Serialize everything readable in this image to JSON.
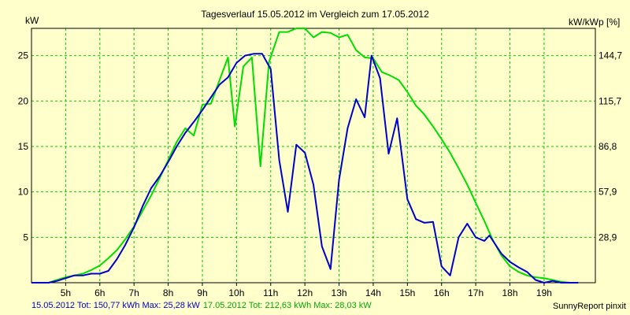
{
  "chart_data": {
    "type": "line",
    "title": "Tagesverlauf 15.05.2012 im Vergleich zum 17.05.2012",
    "ylabel_left": "kW",
    "ylabel_right": "kW/kWp [%]",
    "xlim": [
      4.0,
      20.5
    ],
    "ylim": [
      0,
      28
    ],
    "x_ticks": [
      5,
      6,
      7,
      8,
      9,
      10,
      11,
      12,
      13,
      14,
      15,
      16,
      17,
      18,
      19
    ],
    "x_tick_labels": [
      "5h",
      "6h",
      "7h",
      "8h",
      "9h",
      "10h",
      "11h",
      "12h",
      "13h",
      "14h",
      "15h",
      "16h",
      "17h",
      "18h",
      "19h"
    ],
    "y_ticks_left": [
      5,
      10,
      15,
      20,
      25
    ],
    "y_tick_labels_left": [
      "5",
      "10",
      "15",
      "20",
      "25"
    ],
    "y_ticks_right": [
      5,
      10,
      15,
      20,
      25
    ],
    "y_tick_labels_right": [
      "28,9",
      "57,9",
      "86,8",
      "115,7",
      "144,7"
    ],
    "grid": true,
    "background": "#ffffcc",
    "grid_color": "#00cc00",
    "series": [
      {
        "name": "15.05.2012",
        "color": "#0000cc",
        "x": [
          4.0,
          4.5,
          4.75,
          5.0,
          5.25,
          5.5,
          5.75,
          6.0,
          6.25,
          6.5,
          6.75,
          7.0,
          7.25,
          7.5,
          7.75,
          8.0,
          8.25,
          8.5,
          8.75,
          9.0,
          9.25,
          9.5,
          9.75,
          10.0,
          10.25,
          10.5,
          10.75,
          11.0,
          11.25,
          11.5,
          11.75,
          12.0,
          12.25,
          12.5,
          12.75,
          13.0,
          13.25,
          13.5,
          13.75,
          13.95,
          14.2,
          14.45,
          14.7,
          15.0,
          15.25,
          15.5,
          15.75,
          16.0,
          16.25,
          16.5,
          16.75,
          17.0,
          17.25,
          17.4,
          17.75,
          18.0,
          18.25,
          18.5,
          18.75,
          19.0,
          19.25,
          19.5,
          20.0
        ],
        "values": [
          0,
          0,
          0.2,
          0.5,
          0.8,
          0.8,
          1.0,
          1.0,
          1.3,
          2.6,
          4.2,
          6.1,
          8.4,
          10.4,
          11.7,
          13.3,
          15.0,
          16.5,
          17.7,
          19.0,
          20.4,
          21.8,
          22.6,
          24.2,
          25.0,
          25.2,
          25.2,
          23.5,
          13.5,
          7.8,
          15.2,
          14.3,
          10.8,
          4.0,
          1.5,
          11.3,
          17.0,
          20.2,
          18.2,
          25.0,
          22.5,
          14.2,
          18.1,
          9.2,
          7.0,
          6.6,
          6.7,
          1.8,
          0.8,
          5.0,
          6.5,
          5.0,
          4.6,
          5.2,
          3.2,
          2.3,
          1.7,
          1.2,
          0.3,
          0.0,
          0.2,
          0.0,
          0.0
        ]
      },
      {
        "name": "17.05.2012",
        "color": "#00dd00",
        "x": [
          4.0,
          4.5,
          4.75,
          5.0,
          5.25,
          5.5,
          5.75,
          6.0,
          6.25,
          6.5,
          6.75,
          7.0,
          7.25,
          7.5,
          7.75,
          8.0,
          8.25,
          8.5,
          8.75,
          9.0,
          9.25,
          9.5,
          9.75,
          9.95,
          10.2,
          10.45,
          10.7,
          10.95,
          11.25,
          11.5,
          11.75,
          12.0,
          12.25,
          12.5,
          12.75,
          13.0,
          13.25,
          13.5,
          13.75,
          14.0,
          14.25,
          14.5,
          14.75,
          15.0,
          15.25,
          15.5,
          15.75,
          16.0,
          16.25,
          16.5,
          16.75,
          17.0,
          17.25,
          17.5,
          17.75,
          18.0,
          18.25,
          18.5,
          18.75,
          19.0,
          19.25,
          19.5,
          19.75,
          20.0
        ],
        "values": [
          0,
          0,
          0.3,
          0.6,
          0.8,
          1.0,
          1.4,
          1.9,
          2.7,
          3.6,
          4.8,
          6.2,
          7.9,
          9.6,
          11.5,
          13.5,
          15.5,
          17.0,
          16.2,
          19.6,
          19.7,
          22.3,
          24.8,
          17.2,
          23.8,
          24.8,
          12.8,
          24.3,
          27.6,
          27.6,
          28.0,
          28.0,
          27.0,
          27.6,
          27.5,
          27.0,
          27.3,
          25.6,
          24.8,
          24.7,
          23.2,
          22.8,
          22.3,
          21.0,
          19.5,
          18.5,
          17.2,
          15.8,
          14.3,
          12.6,
          10.8,
          8.8,
          6.8,
          4.7,
          3.0,
          1.8,
          1.2,
          0.8,
          0.6,
          0.5,
          0.3,
          0.1,
          0.0,
          0.0
        ]
      }
    ]
  },
  "footer": {
    "blue_text": "15.05.2012 Tot: 150,77 kWh Max: 25,28 kW",
    "green_text": "17.05.2012 Tot: 212,63 kWh Max: 28,03 kW",
    "credit": "SunnyReport pinxit"
  }
}
